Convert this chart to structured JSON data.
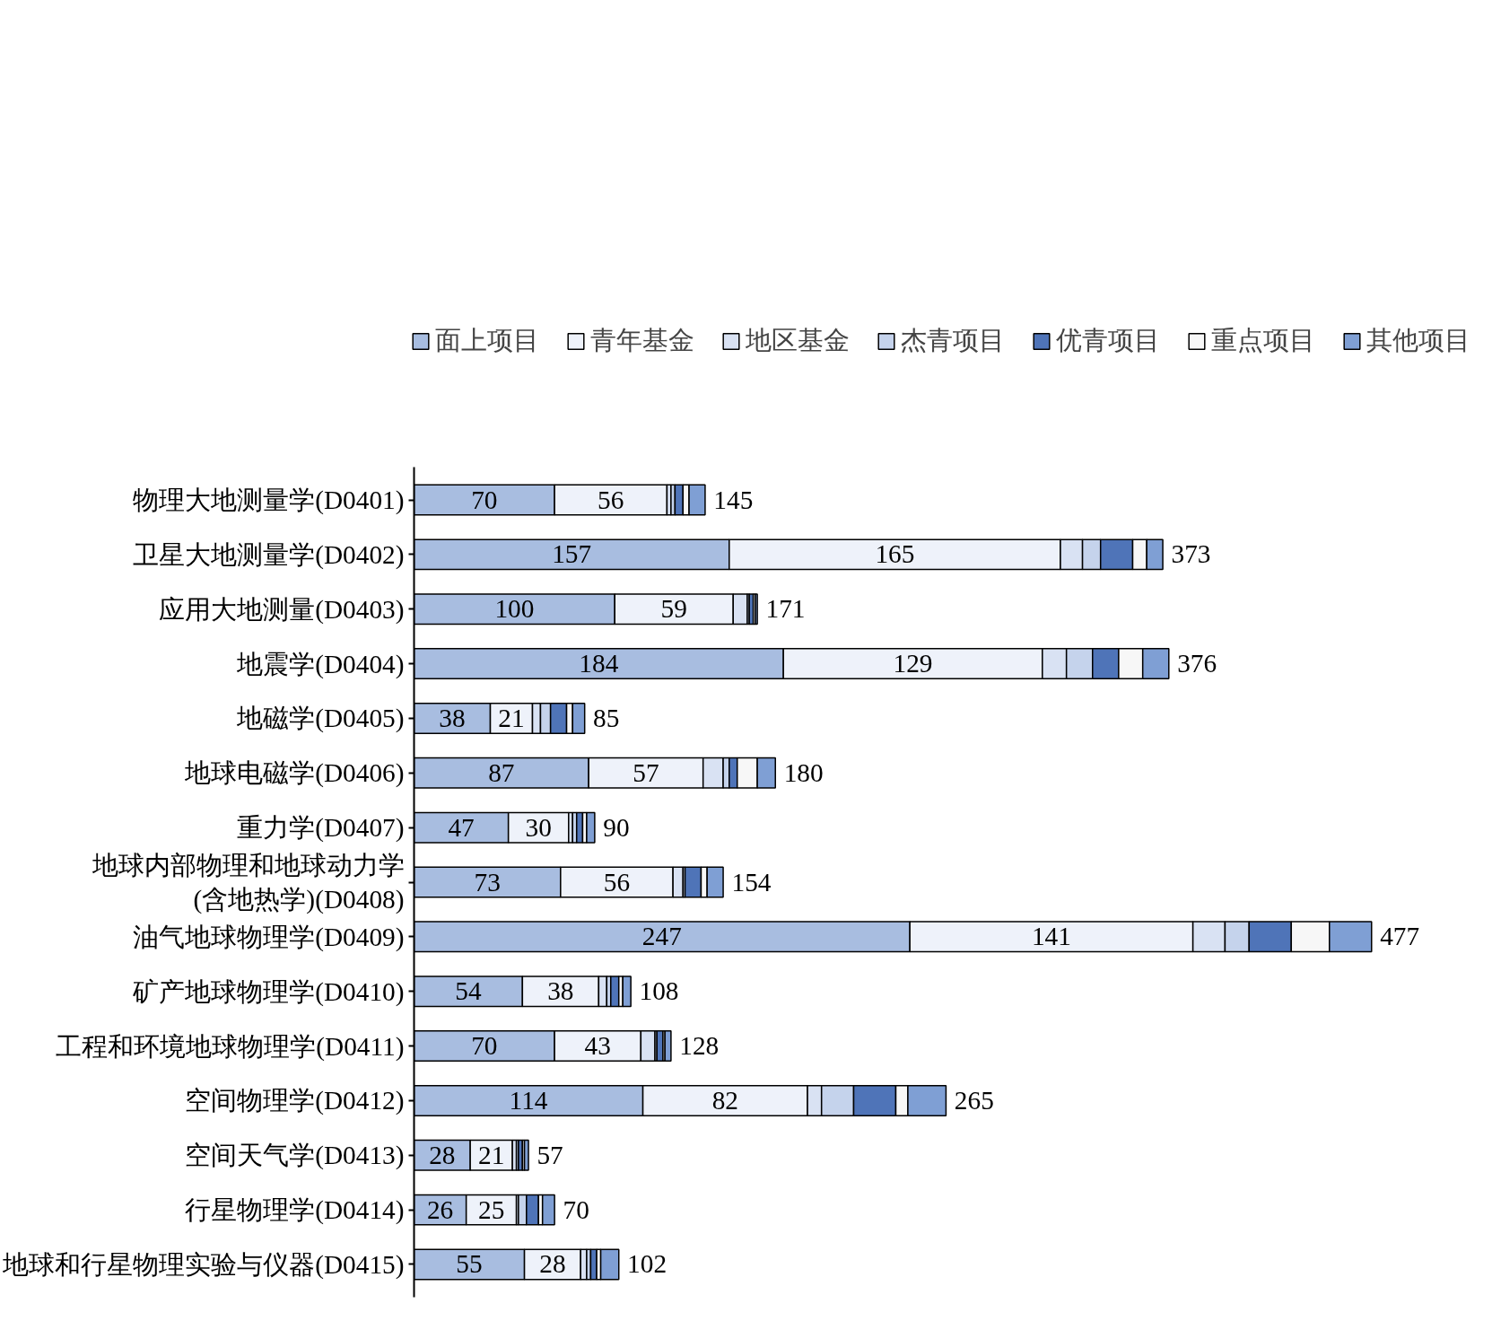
{
  "chart_data": {
    "type": "bar",
    "orientation": "horizontal",
    "stacked": true,
    "legend": "top",
    "grid": false,
    "categories": [
      "物理大地测量学(D0401)",
      "卫星大地测量学(D0402)",
      "应用大地测量(D0403)",
      "地震学(D0404)",
      "地磁学(D0405)",
      "地球电磁学(D0406)",
      "重力学(D0407)",
      "地球内部物理和地球动力学\n(含地热学)(D0408)",
      "油气地球物理学(D0409)",
      "矿产地球物理学(D0410)",
      "工程和环境地球物理学(D0411)",
      "空间物理学(D0412)",
      "空间天气学(D0413)",
      "行星物理学(D0414)",
      "地球和行星物理实验与仪器(D0415)"
    ],
    "series": [
      {
        "name": "面上项目",
        "color": "#a8bde0",
        "values": [
          70,
          157,
          100,
          184,
          38,
          87,
          47,
          73,
          247,
          54,
          70,
          114,
          28,
          26,
          55
        ],
        "value_labels": [
          "70",
          "157",
          "100",
          "184",
          "38",
          "87",
          "47",
          "73",
          "247",
          "54",
          "70",
          "114",
          "28",
          "26",
          "55"
        ]
      },
      {
        "name": "青年基金",
        "color": "#eef2fa",
        "values": [
          56,
          165,
          59,
          129,
          21,
          57,
          30,
          56,
          141,
          38,
          43,
          82,
          21,
          25,
          28
        ],
        "value_labels": [
          "56",
          "165",
          "59",
          "129",
          "21",
          "57",
          "30",
          "56",
          "141",
          "38",
          "43",
          "82",
          "21",
          "25",
          "28"
        ]
      },
      {
        "name": "地区基金",
        "color": "#d9e2f3",
        "values": [
          2,
          11,
          7,
          12,
          4,
          10,
          2,
          5,
          16,
          4,
          7,
          7,
          2,
          1,
          3
        ]
      },
      {
        "name": "杰青项目",
        "color": "#c5d3ec",
        "values": [
          2,
          9,
          1,
          13,
          5,
          3,
          2,
          1,
          12,
          2,
          1,
          16,
          1,
          4,
          2
        ]
      },
      {
        "name": "优青项目",
        "color": "#4f74b8",
        "values": [
          4,
          16,
          2,
          13,
          8,
          4,
          3,
          8,
          21,
          4,
          3,
          21,
          2,
          6,
          3
        ]
      },
      {
        "name": "重点项目",
        "color": "#f7f7f7",
        "values": [
          3,
          7,
          1,
          12,
          3,
          10,
          2,
          3,
          19,
          2,
          1,
          6,
          1,
          2,
          2
        ]
      },
      {
        "name": "其他项目",
        "color": "#7f9fd4",
        "values": [
          8,
          8,
          1,
          13,
          6,
          9,
          4,
          8,
          21,
          4,
          3,
          19,
          2,
          6,
          9
        ]
      }
    ],
    "totals": [
      "145",
      "373",
      "171",
      "376",
      "85",
      "180",
      "90",
      "154",
      "477",
      "108",
      "128",
      "265",
      "57",
      "70",
      "102"
    ]
  }
}
